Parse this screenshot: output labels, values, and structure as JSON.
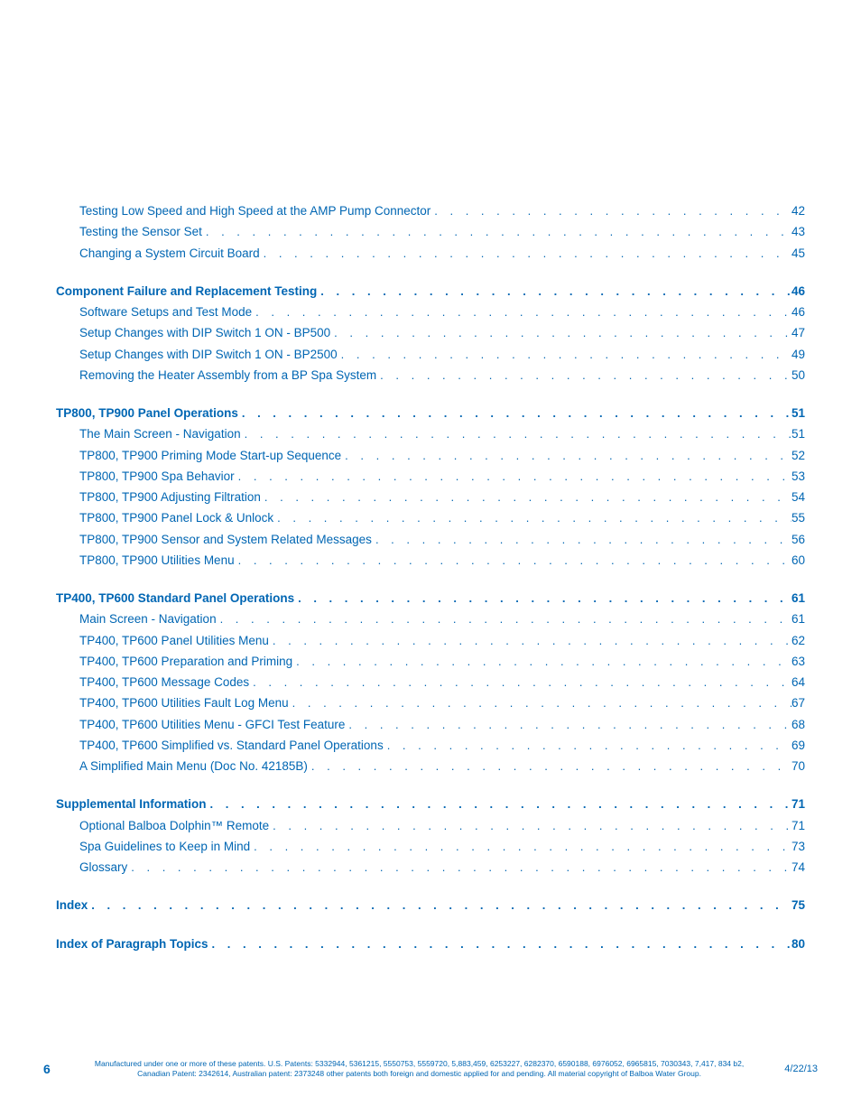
{
  "colors": {
    "primary": "#0066b3",
    "background": "#ffffff"
  },
  "typography": {
    "body_fontsize": 13.5,
    "footer_fontsize": 8.5,
    "pagenum_fontsize": 14
  },
  "sections": [
    {
      "type": "orphan_subs",
      "items": [
        {
          "label": "Testing Low Speed and High Speed at the AMP Pump Connector",
          "page": "42"
        },
        {
          "label": "Testing the Sensor Set",
          "page": "43"
        },
        {
          "label": "Changing a System Circuit Board",
          "page": "45"
        }
      ]
    },
    {
      "type": "section",
      "heading": {
        "label": "Component Failure and Replacement Testing",
        "page": "46"
      },
      "items": [
        {
          "label": "Software Setups and Test Mode",
          "page": "46"
        },
        {
          "label": "Setup Changes with DIP Switch 1 ON - BP500",
          "page": "47"
        },
        {
          "label": "Setup Changes with DIP Switch 1 ON - BP2500",
          "page": "49"
        },
        {
          "label": "Removing the Heater Assembly from a BP Spa System",
          "page": "50"
        }
      ]
    },
    {
      "type": "section",
      "heading": {
        "label": "TP800, TP900 Panel Operations",
        "page": "51"
      },
      "items": [
        {
          "label": "The Main Screen - Navigation",
          "page": "51"
        },
        {
          "label": "TP800, TP900 Priming Mode Start-up Sequence",
          "page": "52"
        },
        {
          "label": "TP800, TP900 Spa Behavior",
          "page": "53"
        },
        {
          "label": "TP800, TP900 Adjusting Filtration",
          "page": "54"
        },
        {
          "label": "TP800, TP900 Panel Lock & Unlock",
          "page": "55"
        },
        {
          "label": "TP800, TP900 Sensor and System Related Messages",
          "page": "56"
        },
        {
          "label": "TP800, TP900 Utilities Menu",
          "page": "60"
        }
      ]
    },
    {
      "type": "section",
      "heading": {
        "label": "TP400, TP600 Standard Panel Operations",
        "page": "61"
      },
      "items": [
        {
          "label": "Main Screen - Navigation",
          "page": "61"
        },
        {
          "label": "TP400, TP600 Panel Utilities Menu",
          "page": "62"
        },
        {
          "label": "TP400, TP600 Preparation and Priming",
          "page": "63"
        },
        {
          "label": "TP400, TP600 Message Codes",
          "page": "64"
        },
        {
          "label": "TP400, TP600 Utilities Fault Log Menu",
          "page": "67"
        },
        {
          "label": "TP400, TP600 Utilities Menu - GFCI Test Feature",
          "page": "68"
        },
        {
          "label": "TP400, TP600 Simplified vs. Standard Panel Operations",
          "page": "69"
        },
        {
          "label": "A Simplified Main Menu (Doc No. 42185B)",
          "page": "70"
        }
      ]
    },
    {
      "type": "section",
      "heading": {
        "label": "Supplemental Information",
        "page": "71"
      },
      "items": [
        {
          "label": "Optional Balboa Dolphin™ Remote",
          "page": "71"
        },
        {
          "label": "Spa Guidelines to Keep in Mind",
          "page": "73"
        },
        {
          "label": "Glossary",
          "page": "74"
        }
      ]
    },
    {
      "type": "standalone",
      "heading": {
        "label": "Index",
        "page": "75"
      }
    },
    {
      "type": "standalone",
      "heading": {
        "label": "Index of Paragraph Topics",
        "page": "80"
      }
    }
  ],
  "footer": {
    "page_number": "6",
    "patent_line1": "Manufactured under one or more of these patents. U.S. Patents: 5332944, 5361215, 5550753, 5559720, 5,883,459, 6253227, 6282370, 6590188, 6976052, 6965815, 7030343, 7,417, 834 b2,",
    "patent_line2": "Canadian Patent: 2342614, Australian patent: 2373248 other patents both foreign and domestic applied for and pending. All material copyright of Balboa Water Group.",
    "date": "4/22/13"
  },
  "dots": " .  .  .  .  .  .  .  .  .  .  .  .  .  .  .  .  .  .  .  .  .  .  .  .  .  .  .  .  .  .  .  .  .  .  .  .  .  .  .  .  .  .  .  .  .  .  .  .  .  .  .  .  .  .  .  .  .  .  .  .  .  .  .  .  .  .  .  .  .  .  .  .  .  .  .  .  .  .  .  .  .  .  .  .  .  .  .  .  .  .  .  .  .  .  .  .  .  .  .  ."
}
